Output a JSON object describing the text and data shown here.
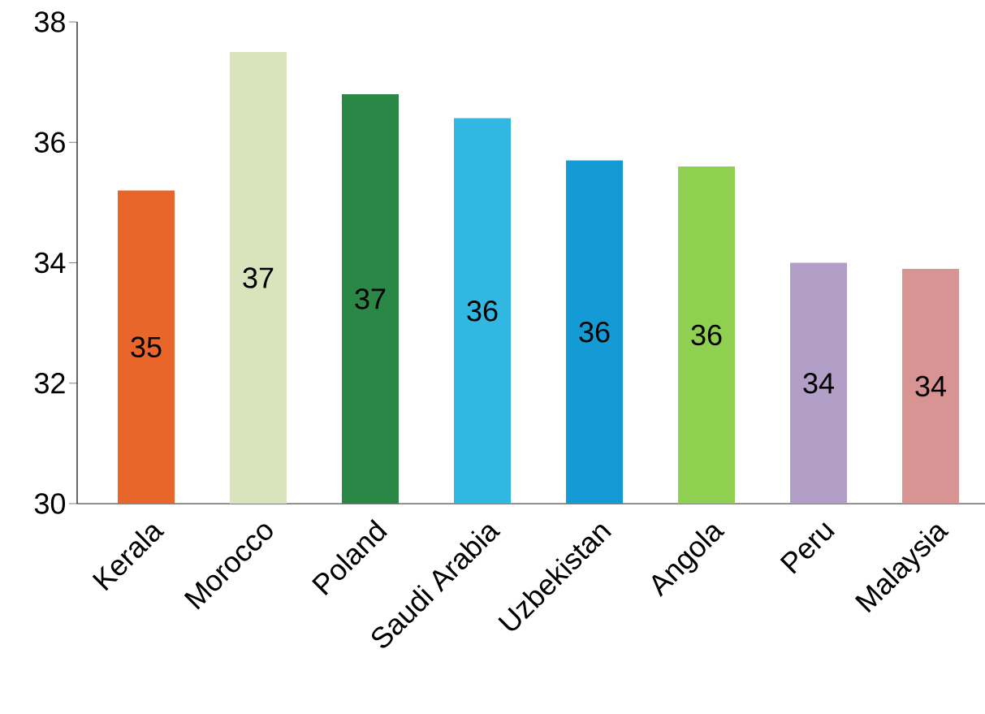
{
  "chart_data": {
    "type": "bar",
    "categories": [
      "Kerala",
      "Morocco",
      "Poland",
      "Saudi Arabia",
      "Uzbekistan",
      "Angola",
      "Peru",
      "Malaysia"
    ],
    "values": [
      35.2,
      37.5,
      36.8,
      36.4,
      35.7,
      35.6,
      34.0,
      33.9
    ],
    "value_labels": [
      "35",
      "37",
      "37",
      "36",
      "36",
      "36",
      "34",
      "34"
    ],
    "colors": [
      "#e8662a",
      "#d9e4bd",
      "#2b8745",
      "#30b8e2",
      "#149bd6",
      "#90d050",
      "#b19fc8",
      "#d89493"
    ],
    "ylim": [
      30,
      38
    ],
    "yticks": [
      30,
      32,
      34,
      36,
      38
    ],
    "grid": false
  }
}
